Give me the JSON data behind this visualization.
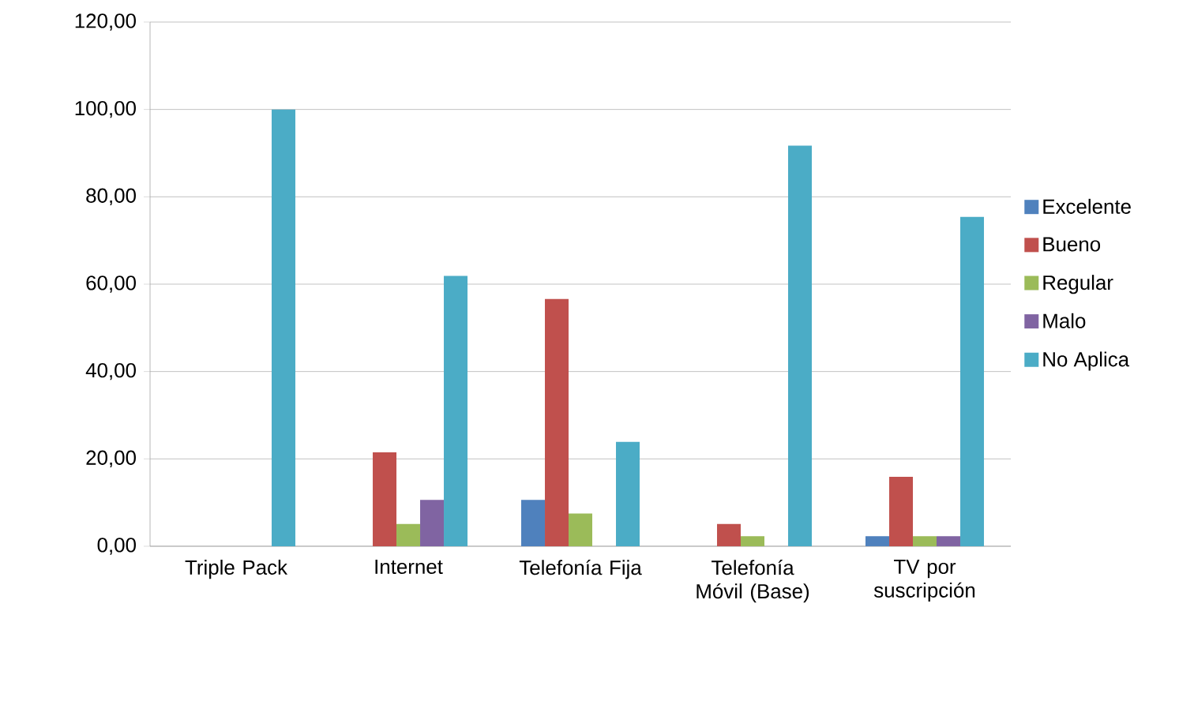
{
  "chart_data": {
    "type": "bar",
    "categories": [
      "Triple Pack",
      "Internet",
      "Telefonía Fija",
      "Telefonía Móvil (Base)",
      "TV por suscripción"
    ],
    "series": [
      {
        "name": "Excelente",
        "color": "#4f81bd",
        "values": [
          0,
          0,
          10.6,
          0,
          2.3
        ]
      },
      {
        "name": "Bueno",
        "color": "#c0504d",
        "values": [
          0,
          21.5,
          56.6,
          5.1,
          15.9
        ]
      },
      {
        "name": "Regular",
        "color": "#9bbb59",
        "values": [
          0,
          5.1,
          7.5,
          2.3,
          2.3
        ]
      },
      {
        "name": "Malo",
        "color": "#8064a2",
        "values": [
          0,
          10.6,
          0,
          0,
          2.3
        ]
      },
      {
        "name": "No Aplica",
        "color": "#4bacc6",
        "values": [
          100,
          61.9,
          23.9,
          91.7,
          75.4
        ]
      }
    ],
    "ylim": [
      0,
      120
    ],
    "yticks": [
      {
        "value": 0,
        "label": "0,00"
      },
      {
        "value": 20,
        "label": "20,00"
      },
      {
        "value": 40,
        "label": "40,00"
      },
      {
        "value": 60,
        "label": "60,00"
      },
      {
        "value": 80,
        "label": "80,00"
      },
      {
        "value": 100,
        "label": "100,00"
      },
      {
        "value": 120,
        "label": "120,00"
      }
    ],
    "grid": "y",
    "legend": "right"
  }
}
